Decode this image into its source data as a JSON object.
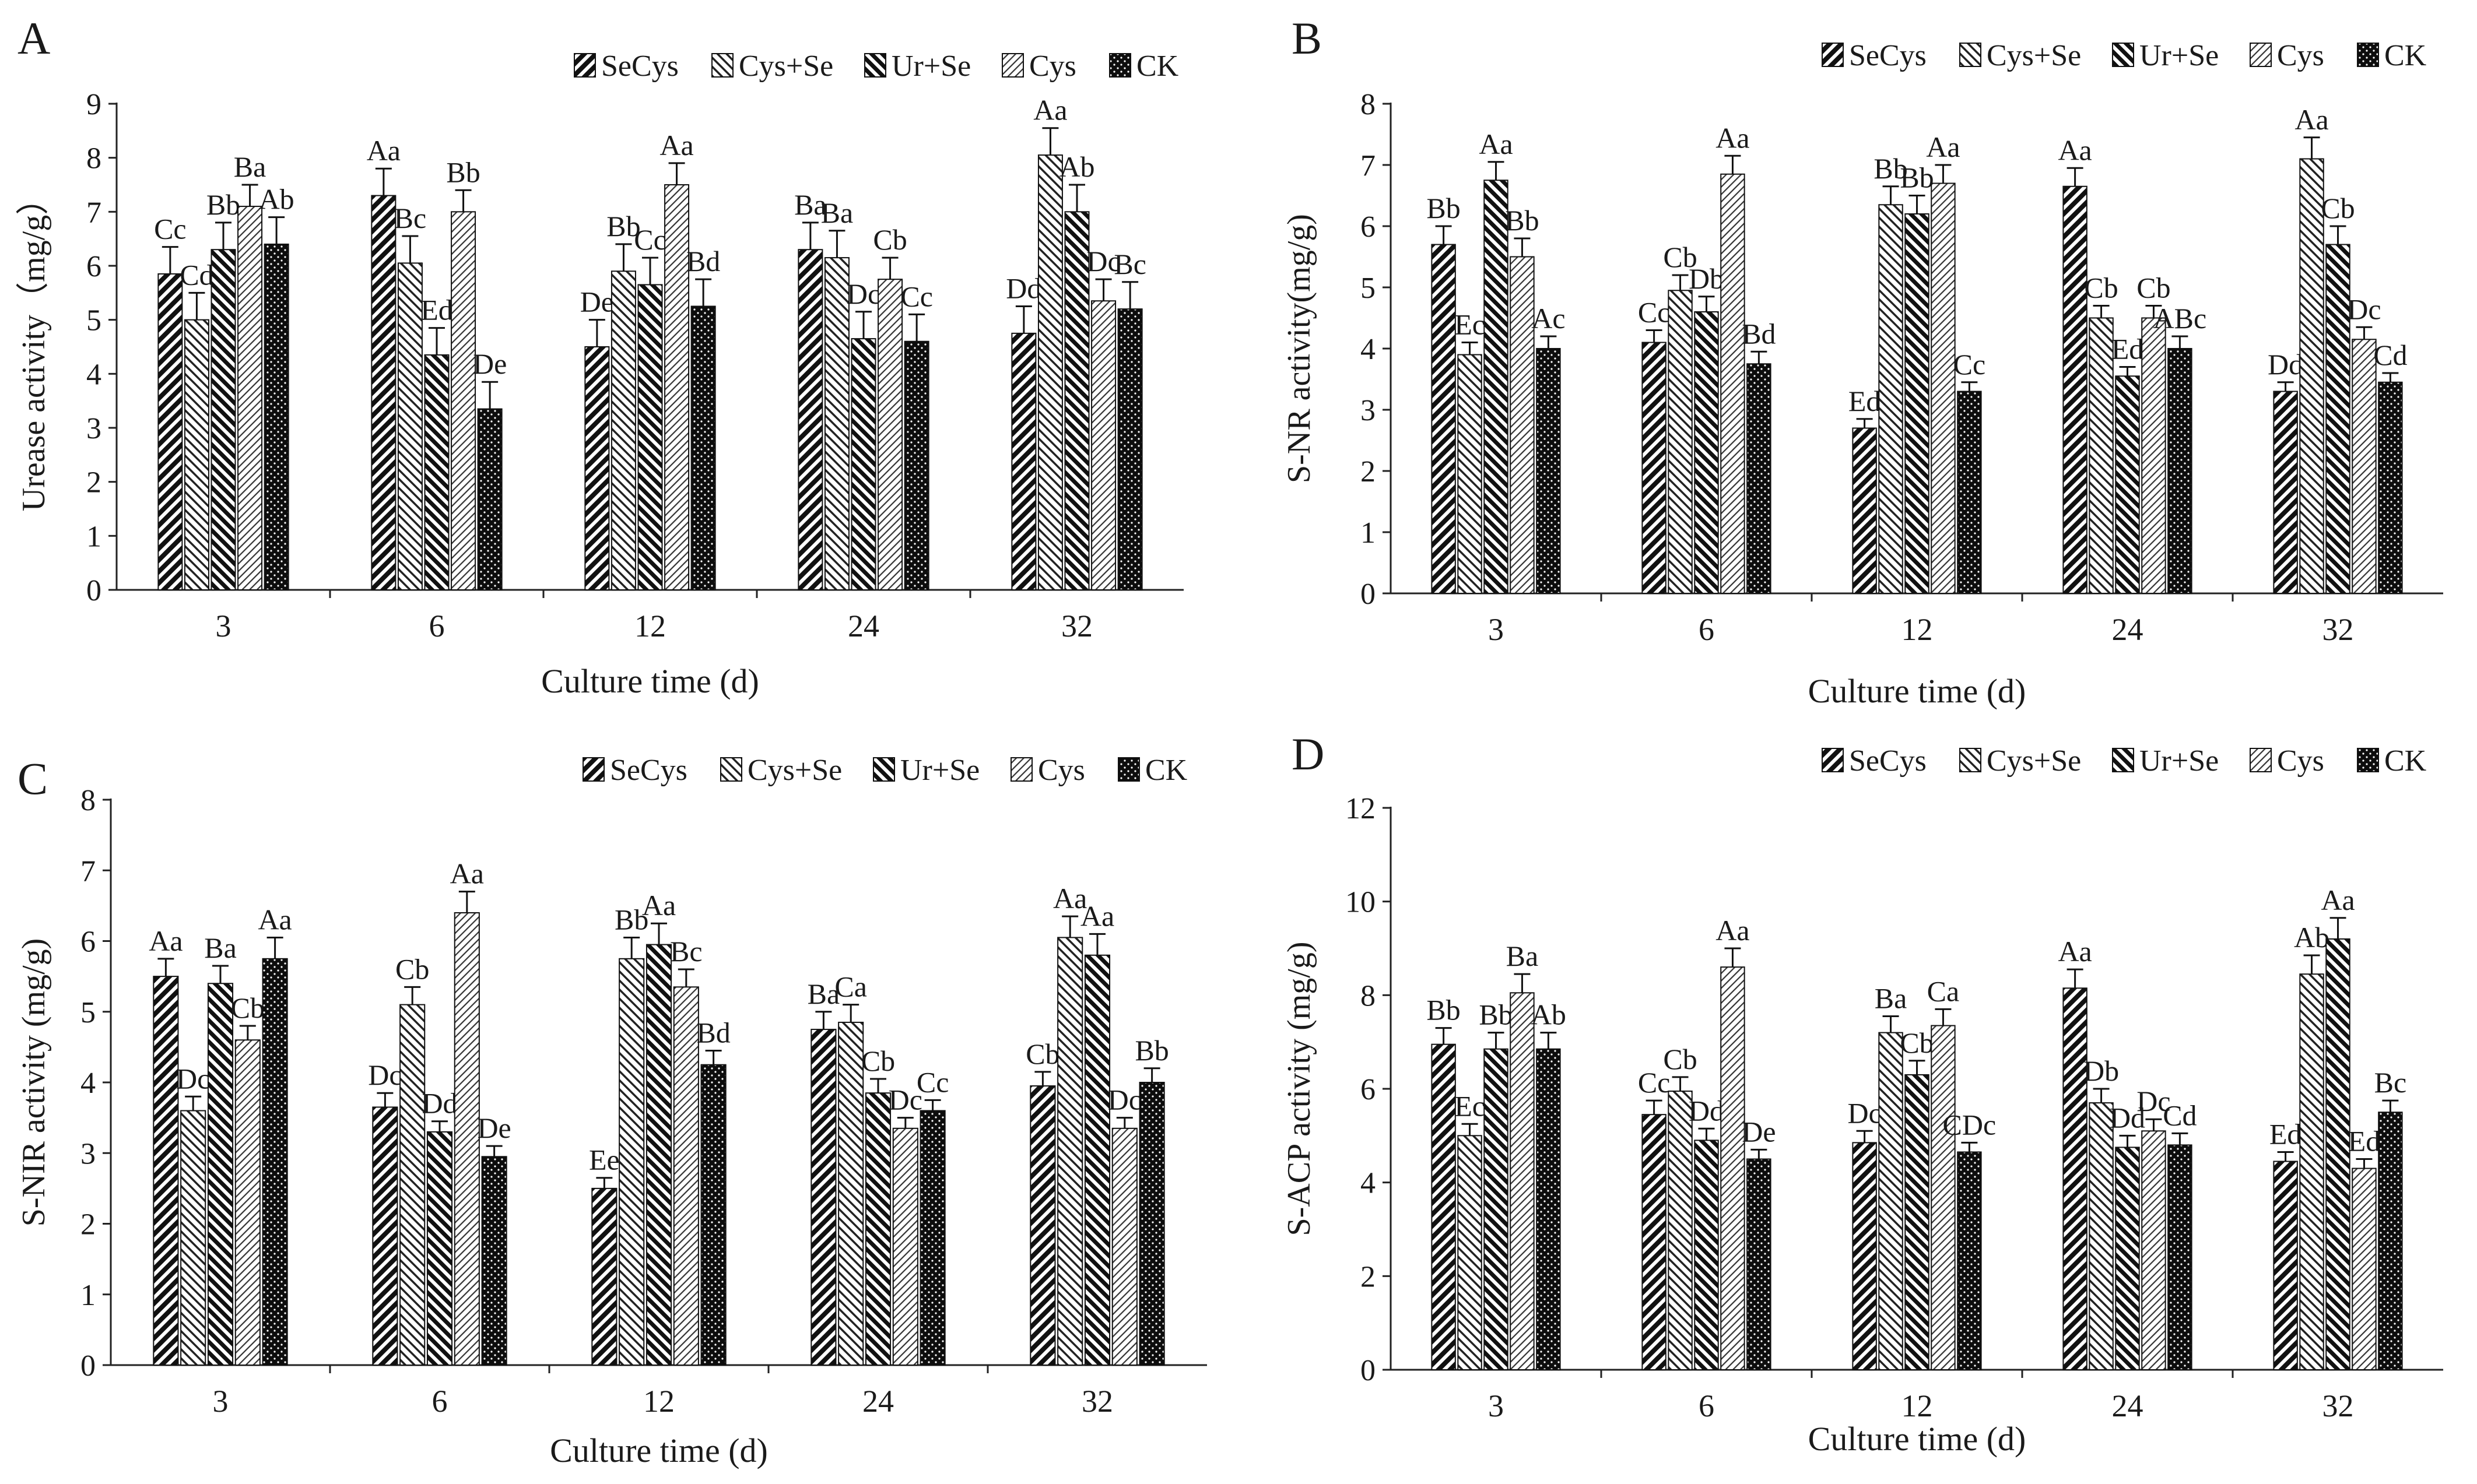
{
  "chart_data": [
    {
      "panel_label": "A",
      "type": "bar",
      "ylabel": "Urease activity（mg/g）",
      "xlabel": "Culture time (d)",
      "ylim": [
        0,
        9
      ],
      "yticks": [
        0,
        1,
        2,
        3,
        4,
        5,
        6,
        7,
        8,
        9
      ],
      "categories": [
        "3",
        "6",
        "12",
        "24",
        "32"
      ],
      "series": [
        {
          "name": "SeCys",
          "values": [
            5.85,
            7.3,
            4.5,
            6.3,
            4.75
          ],
          "errors": [
            0.5,
            0.5,
            0.5,
            0.5,
            0.5
          ],
          "labels": [
            "Cc",
            "Aa",
            "De",
            "Ba",
            "Dd"
          ]
        },
        {
          "name": "Cys+Se",
          "values": [
            5.0,
            6.05,
            5.9,
            6.15,
            8.05
          ],
          "errors": [
            0.5,
            0.5,
            0.5,
            0.5,
            0.5
          ],
          "labels": [
            "Cd",
            "Bc",
            "Bb",
            "Ba",
            "Aa"
          ]
        },
        {
          "name": "Ur+Se",
          "values": [
            6.3,
            4.35,
            5.65,
            4.65,
            7.0
          ],
          "errors": [
            0.5,
            0.5,
            0.5,
            0.5,
            0.5
          ],
          "labels": [
            "Bb",
            "Ed",
            "Cc",
            "Dc",
            "Ab"
          ]
        },
        {
          "name": "Cys",
          "values": [
            7.1,
            7.0,
            7.5,
            5.75,
            5.35
          ],
          "errors": [
            0.4,
            0.4,
            0.4,
            0.4,
            0.4
          ],
          "labels": [
            "Ba",
            "Bb",
            "Aa",
            "Cb",
            "Dc"
          ]
        },
        {
          "name": "CK",
          "values": [
            6.4,
            3.35,
            5.25,
            4.6,
            5.2
          ],
          "errors": [
            0.5,
            0.5,
            0.5,
            0.5,
            0.5
          ],
          "labels": [
            "Ab",
            "De",
            "Bd",
            "Cc",
            "Bc"
          ]
        }
      ]
    },
    {
      "panel_label": "B",
      "type": "bar",
      "ylabel": "S-NR activity(mg/g)",
      "xlabel": "Culture time (d)",
      "ylim": [
        0,
        8
      ],
      "yticks": [
        0,
        1,
        2,
        3,
        4,
        5,
        6,
        7,
        8
      ],
      "categories": [
        "3",
        "6",
        "12",
        "24",
        "32"
      ],
      "series": [
        {
          "name": "SeCys",
          "values": [
            5.7,
            4.1,
            2.7,
            6.65,
            3.3
          ],
          "errors": [
            0.3,
            0.2,
            0.15,
            0.3,
            0.15
          ],
          "labels": [
            "Bb",
            "Cc",
            "Ed",
            "Aa",
            "Dd"
          ]
        },
        {
          "name": "Cys+Se",
          "values": [
            3.9,
            4.95,
            6.35,
            4.5,
            7.1
          ],
          "errors": [
            0.2,
            0.25,
            0.3,
            0.2,
            0.35
          ],
          "labels": [
            "Ec",
            "Cb",
            "Bb",
            "Cb",
            "Aa"
          ]
        },
        {
          "name": "Ur+Se",
          "values": [
            6.75,
            4.6,
            6.2,
            3.55,
            5.7
          ],
          "errors": [
            0.3,
            0.25,
            0.3,
            0.15,
            0.3
          ],
          "labels": [
            "Aa",
            "Db",
            "Bb",
            "Ed",
            "Cb"
          ]
        },
        {
          "name": "Cys",
          "values": [
            5.5,
            6.85,
            6.7,
            4.5,
            4.15
          ],
          "errors": [
            0.3,
            0.3,
            0.3,
            0.2,
            0.2
          ],
          "labels": [
            "Bb",
            "Aa",
            "Aa",
            "Cb",
            "Dc"
          ]
        },
        {
          "name": "CK",
          "values": [
            4.0,
            3.75,
            3.3,
            4.0,
            3.45
          ],
          "errors": [
            0.2,
            0.2,
            0.15,
            0.2,
            0.15
          ],
          "labels": [
            "Ac",
            "Bd",
            "Cc",
            "ABc",
            "Cd"
          ]
        }
      ]
    },
    {
      "panel_label": "C",
      "type": "bar",
      "ylabel": "S-NIR activity (mg/g)",
      "xlabel": "Culture time (d)",
      "ylim": [
        0,
        8
      ],
      "yticks": [
        0,
        1,
        2,
        3,
        4,
        5,
        6,
        7,
        8
      ],
      "categories": [
        "3",
        "6",
        "12",
        "24",
        "32"
      ],
      "series": [
        {
          "name": "SeCys",
          "values": [
            5.5,
            3.65,
            2.5,
            4.75,
            3.95
          ],
          "errors": [
            0.25,
            0.2,
            0.15,
            0.25,
            0.2
          ],
          "labels": [
            "Aa",
            "Dc",
            "Ee",
            "Ba",
            "Cb"
          ]
        },
        {
          "name": "Cys+Se",
          "values": [
            3.6,
            5.1,
            5.75,
            4.85,
            6.05
          ],
          "errors": [
            0.2,
            0.25,
            0.3,
            0.25,
            0.3
          ],
          "labels": [
            "Dc",
            "Cb",
            "Bb",
            "Ca",
            "Aa"
          ]
        },
        {
          "name": "Ur+Se",
          "values": [
            5.4,
            3.3,
            5.95,
            3.85,
            5.8
          ],
          "errors": [
            0.25,
            0.15,
            0.3,
            0.2,
            0.3
          ],
          "labels": [
            "Ba",
            "Dd",
            "Aa",
            "Cb",
            "Aa"
          ]
        },
        {
          "name": "Cys",
          "values": [
            4.6,
            6.4,
            5.35,
            3.35,
            3.35
          ],
          "errors": [
            0.2,
            0.3,
            0.25,
            0.15,
            0.15
          ],
          "labels": [
            "Cb",
            "Aa",
            "Bc",
            "Dc",
            "Dc"
          ]
        },
        {
          "name": "CK",
          "values": [
            5.75,
            2.95,
            4.25,
            3.6,
            4.0
          ],
          "errors": [
            0.3,
            0.15,
            0.2,
            0.15,
            0.2
          ],
          "labels": [
            "Aa",
            "De",
            "Bd",
            "Cc",
            "Bb"
          ]
        }
      ]
    },
    {
      "panel_label": "D",
      "type": "bar",
      "ylabel": "S-ACP activity (mg/g)",
      "xlabel": "Culture time (d)",
      "ylim": [
        0,
        12
      ],
      "yticks": [
        0,
        2,
        4,
        6,
        8,
        10,
        12
      ],
      "categories": [
        "3",
        "6",
        "12",
        "24",
        "32"
      ],
      "series": [
        {
          "name": "SeCys",
          "values": [
            6.95,
            5.45,
            4.85,
            8.15,
            4.45
          ],
          "errors": [
            0.35,
            0.3,
            0.25,
            0.4,
            0.2
          ],
          "labels": [
            "Bb",
            "Cc",
            "Dc",
            "Aa",
            "Ed"
          ]
        },
        {
          "name": "Cys+Se",
          "values": [
            5.0,
            5.95,
            7.2,
            5.7,
            8.45
          ],
          "errors": [
            0.25,
            0.3,
            0.35,
            0.3,
            0.4
          ],
          "labels": [
            "Ec",
            "Cb",
            "Ba",
            "Db",
            "Ab"
          ]
        },
        {
          "name": "Ur+Se",
          "values": [
            6.85,
            4.9,
            6.3,
            4.75,
            9.2
          ],
          "errors": [
            0.35,
            0.25,
            0.3,
            0.25,
            0.45
          ],
          "labels": [
            "Bb",
            "Dd",
            "Cb",
            "Dd",
            "Aa"
          ]
        },
        {
          "name": "Cys",
          "values": [
            8.05,
            8.6,
            7.35,
            5.1,
            4.3
          ],
          "errors": [
            0.4,
            0.4,
            0.35,
            0.25,
            0.2
          ],
          "labels": [
            "Ba",
            "Aa",
            "Ca",
            "Dc",
            "Ed"
          ]
        },
        {
          "name": "CK",
          "values": [
            6.85,
            4.5,
            4.65,
            4.8,
            5.5
          ],
          "errors": [
            0.35,
            0.2,
            0.2,
            0.25,
            0.25
          ],
          "labels": [
            "Ab",
            "De",
            "CDc",
            "Cd",
            "Bc"
          ]
        }
      ]
    }
  ]
}
